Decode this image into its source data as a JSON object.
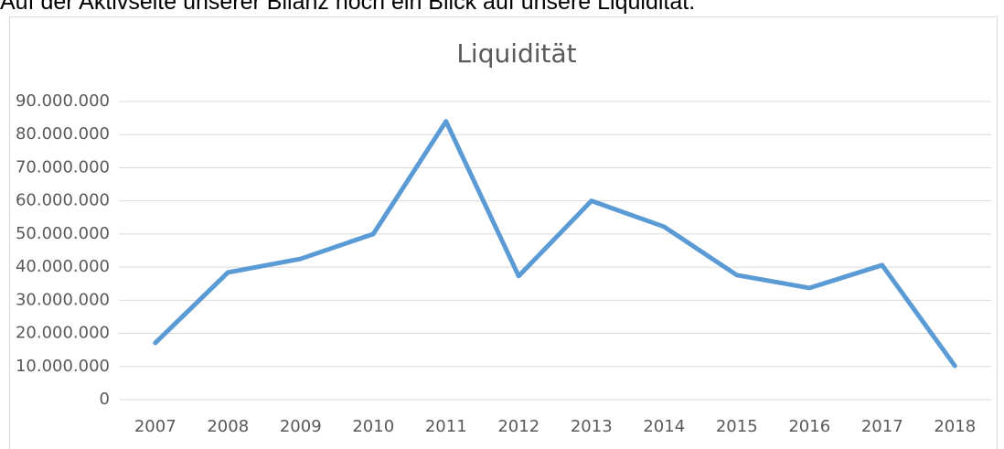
{
  "intro": "Auf der Aktivseite unserer Bilanz noch ein Blick auf unsere Liquidität.",
  "chart_data": {
    "type": "line",
    "title": "Liquidität",
    "categories": [
      "2007",
      "2008",
      "2009",
      "2010",
      "2011",
      "2012",
      "2013",
      "2014",
      "2015",
      "2016",
      "2017",
      "2018"
    ],
    "series": [
      {
        "name": "Liquidität",
        "color": "#5b9bd5",
        "values": [
          17100000,
          38400000,
          42500000,
          50000000,
          84000000,
          37300000,
          60000000,
          52200000,
          37600000,
          33700000,
          40600000,
          10200000
        ]
      }
    ],
    "ylim": [
      0,
      90000000
    ],
    "yticks": [
      0,
      {
        "value": 10000000,
        "label": "10.000.000"
      },
      {
        "value": 20000000,
        "label": "20.000.000"
      },
      {
        "value": 30000000,
        "label": "30.000.000"
      },
      {
        "value": 40000000,
        "label": "40.000.000"
      },
      {
        "value": 50000000,
        "label": "50.000.000"
      },
      {
        "value": 60000000,
        "label": "60.000.000"
      },
      {
        "value": 70000000,
        "label": "70.000.000"
      },
      {
        "value": 80000000,
        "label": "80.000.000"
      },
      {
        "value": 90000000,
        "label": "90.000.000"
      }
    ],
    "grid": true
  }
}
